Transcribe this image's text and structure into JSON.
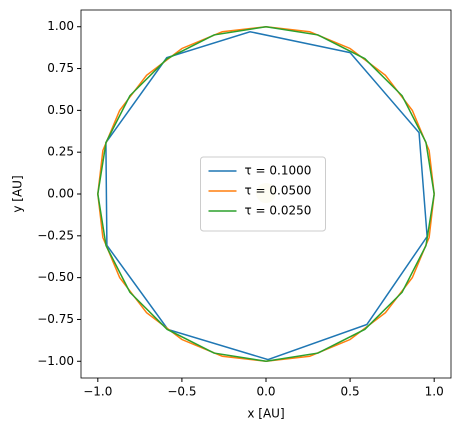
{
  "chart_data": {
    "type": "line",
    "xlabel": "x [AU]",
    "ylabel": "y [AU]",
    "xlim": [
      -1.1,
      1.1
    ],
    "ylim": [
      -1.1,
      1.1
    ],
    "xticks": [
      {
        "value": -1.0,
        "label": "−1.0"
      },
      {
        "value": -0.5,
        "label": "−0.5"
      },
      {
        "value": 0,
        "label": "0.0"
      },
      {
        "value": 0.5,
        "label": "0.5"
      },
      {
        "value": 1.0,
        "label": "1.0"
      }
    ],
    "yticks": [
      {
        "value": -1.0,
        "label": "−1.00"
      },
      {
        "value": -0.75,
        "label": "−0.75"
      },
      {
        "value": -0.5,
        "label": "−0.50"
      },
      {
        "value": -0.25,
        "label": "−0.25"
      },
      {
        "value": 0,
        "label": "0.00"
      },
      {
        "value": 0.25,
        "label": "0.25"
      },
      {
        "value": 0.5,
        "label": "0.50"
      },
      {
        "value": 0.75,
        "label": "0.75"
      },
      {
        "value": 1.0,
        "label": "1.00"
      }
    ],
    "legend": "center",
    "series": [
      {
        "name": "τ = 0.1000",
        "color": "#1f77b4",
        "x": [
          0.5,
          0.91,
          0.958,
          0.6,
          0.012,
          -0.583,
          -0.946,
          -0.952,
          -0.59,
          -0.095,
          0.5
        ],
        "values": [
          0.845,
          0.367,
          -0.254,
          -0.78,
          -0.99,
          -0.81,
          -0.307,
          0.307,
          0.815,
          0.97,
          0.845
        ]
      },
      {
        "name": "τ = 0.0500",
        "color": "#ff7f0e",
        "x": [
          1,
          0.97,
          0.87,
          0.71,
          0.5,
          0.26,
          0,
          -0.26,
          -0.5,
          -0.71,
          -0.87,
          -0.97,
          -1,
          -0.97,
          -0.87,
          -0.71,
          -0.5,
          -0.26,
          0,
          0.26,
          0.5,
          0.71,
          0.87,
          0.97,
          1
        ],
        "values": [
          0,
          0.26,
          0.5,
          0.71,
          0.87,
          0.97,
          1,
          0.97,
          0.87,
          0.71,
          0.5,
          0.26,
          0,
          -0.26,
          -0.5,
          -0.71,
          -0.87,
          -0.97,
          -1,
          -0.97,
          -0.87,
          -0.71,
          -0.5,
          -0.26,
          0
        ]
      },
      {
        "name": "τ = 0.0250",
        "color": "#2ca02c",
        "x": [
          1,
          0.951,
          0.809,
          0.588,
          0.309,
          0,
          -0.309,
          -0.588,
          -0.809,
          -0.951,
          -1,
          -0.951,
          -0.809,
          -0.588,
          -0.309,
          0,
          0.309,
          0.588,
          0.809,
          0.951,
          1
        ],
        "values": [
          0,
          0.309,
          0.588,
          0.809,
          0.951,
          1,
          0.951,
          0.809,
          0.588,
          0.309,
          0,
          -0.309,
          -0.588,
          -0.809,
          -0.951,
          -1,
          -0.951,
          -0.809,
          -0.588,
          -0.309,
          0
        ]
      }
    ]
  }
}
